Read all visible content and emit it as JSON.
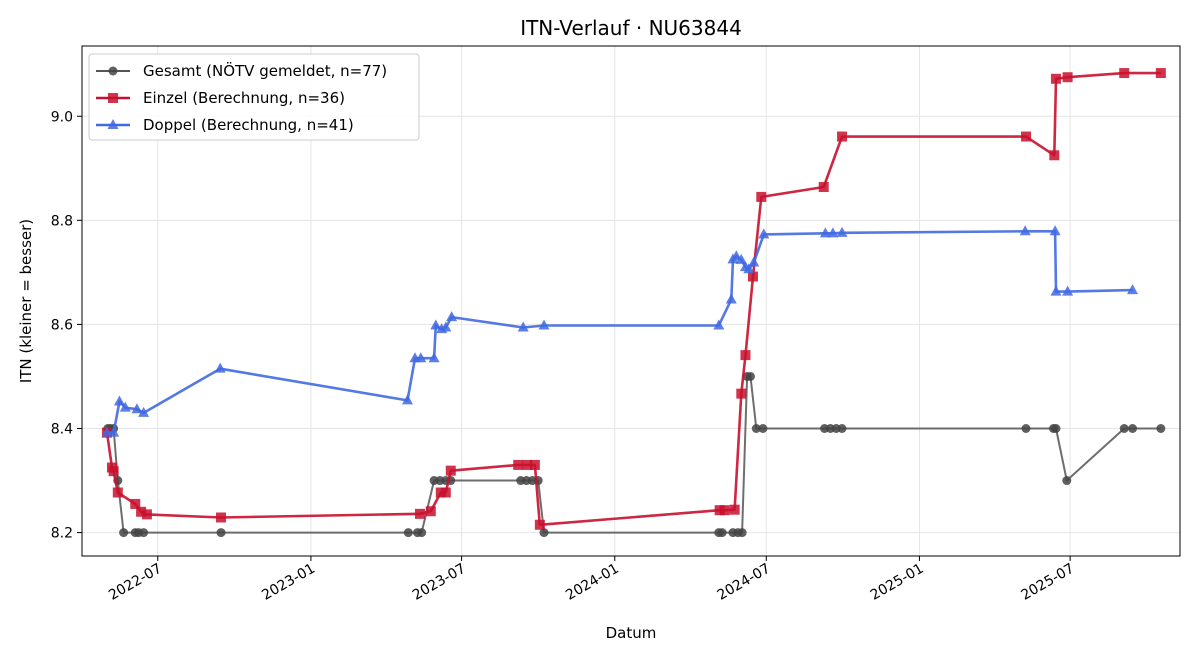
{
  "chart_data": {
    "type": "line",
    "title": "ITN-Verlauf · NU63844",
    "xlabel": "Datum",
    "ylabel": "ITN  (kleiner = besser)",
    "x_axis_type": "date",
    "xlim": [
      "2022-04-01",
      "2025-11-10"
    ],
    "ylim": [
      8.155,
      9.135
    ],
    "x_ticks": [
      "2022-07",
      "2023-01",
      "2023-07",
      "2024-01",
      "2024-07",
      "2025-01",
      "2025-07"
    ],
    "y_ticks": [
      8.2,
      8.4,
      8.6,
      8.8,
      9.0
    ],
    "grid": true,
    "legend_position": "top-left",
    "series": [
      {
        "name": "Gesamt (NÖTV gemeldet, n=77)",
        "color": "#555555",
        "marker": "circle",
        "points": [
          [
            "2022-05-02",
            8.4
          ],
          [
            "2022-05-05",
            8.4
          ],
          [
            "2022-05-09",
            8.4
          ],
          [
            "2022-05-14",
            8.3
          ],
          [
            "2022-05-21",
            8.2
          ],
          [
            "2022-06-04",
            8.2
          ],
          [
            "2022-06-08",
            8.2
          ],
          [
            "2022-06-14",
            8.2
          ],
          [
            "2022-09-15",
            8.2
          ],
          [
            "2023-04-28",
            8.2
          ],
          [
            "2023-05-09",
            8.2
          ],
          [
            "2023-05-14",
            8.2
          ],
          [
            "2023-05-29",
            8.3
          ],
          [
            "2023-06-05",
            8.3
          ],
          [
            "2023-06-12",
            8.3
          ],
          [
            "2023-06-18",
            8.3
          ],
          [
            "2023-09-10",
            8.3
          ],
          [
            "2023-09-17",
            8.3
          ],
          [
            "2023-09-24",
            8.3
          ],
          [
            "2023-10-01",
            8.3
          ],
          [
            "2023-10-08",
            8.2
          ],
          [
            "2024-05-05",
            8.2
          ],
          [
            "2024-05-09",
            8.2
          ],
          [
            "2024-05-22",
            8.2
          ],
          [
            "2024-05-28",
            8.2
          ],
          [
            "2024-06-02",
            8.2
          ],
          [
            "2024-06-08",
            8.5
          ],
          [
            "2024-06-12",
            8.5
          ],
          [
            "2024-06-19",
            8.4
          ],
          [
            "2024-06-27",
            8.4
          ],
          [
            "2024-09-09",
            8.4
          ],
          [
            "2024-09-16",
            8.4
          ],
          [
            "2024-09-23",
            8.4
          ],
          [
            "2024-09-30",
            8.4
          ],
          [
            "2025-05-09",
            8.4
          ],
          [
            "2025-06-11",
            8.4
          ],
          [
            "2025-06-14",
            8.4
          ],
          [
            "2025-06-27",
            8.3
          ],
          [
            "2025-09-04",
            8.4
          ],
          [
            "2025-09-14",
            8.4
          ],
          [
            "2025-10-18",
            8.4
          ]
        ]
      },
      {
        "name": "Einzel (Berechnung, n=36)",
        "color": "#c8102e",
        "marker": "square",
        "points": [
          [
            "2022-05-01",
            8.392
          ],
          [
            "2022-05-07",
            8.325
          ],
          [
            "2022-05-09",
            8.318
          ],
          [
            "2022-05-14",
            8.277
          ],
          [
            "2022-06-04",
            8.255
          ],
          [
            "2022-06-11",
            8.24
          ],
          [
            "2022-06-18",
            8.235
          ],
          [
            "2022-09-15",
            8.229
          ],
          [
            "2023-05-12",
            8.236
          ],
          [
            "2023-05-25",
            8.241
          ],
          [
            "2023-06-06",
            8.277
          ],
          [
            "2023-06-12",
            8.277
          ],
          [
            "2023-06-18",
            8.319
          ],
          [
            "2023-09-07",
            8.33
          ],
          [
            "2023-09-18",
            8.33
          ],
          [
            "2023-09-27",
            8.33
          ],
          [
            "2023-10-03",
            8.215
          ],
          [
            "2024-05-06",
            8.243
          ],
          [
            "2024-05-12",
            8.243
          ],
          [
            "2024-05-24",
            8.244
          ],
          [
            "2024-06-01",
            8.467
          ],
          [
            "2024-06-06",
            8.541
          ],
          [
            "2024-06-15",
            8.692
          ],
          [
            "2024-06-25",
            8.845
          ],
          [
            "2024-09-08",
            8.864
          ],
          [
            "2024-09-30",
            8.961
          ],
          [
            "2025-05-09",
            8.961
          ],
          [
            "2025-06-12",
            8.925
          ],
          [
            "2025-06-14",
            9.072
          ],
          [
            "2025-06-28",
            9.075
          ],
          [
            "2025-09-04",
            9.083
          ],
          [
            "2025-10-18",
            9.083
          ]
        ]
      },
      {
        "name": "Doppel (Berechnung, n=41)",
        "color": "#4169e1",
        "marker": "triangle",
        "points": [
          [
            "2022-05-01",
            8.392
          ],
          [
            "2022-05-09",
            8.392
          ],
          [
            "2022-05-16",
            8.452
          ],
          [
            "2022-05-23",
            8.44
          ],
          [
            "2022-06-06",
            8.437
          ],
          [
            "2022-06-14",
            8.43
          ],
          [
            "2022-09-14",
            8.515
          ],
          [
            "2023-04-27",
            8.454
          ],
          [
            "2023-05-06",
            8.535
          ],
          [
            "2023-05-13",
            8.535
          ],
          [
            "2023-05-29",
            8.535
          ],
          [
            "2023-05-31",
            8.598
          ],
          [
            "2023-06-07",
            8.591
          ],
          [
            "2023-06-12",
            8.594
          ],
          [
            "2023-06-19",
            8.614
          ],
          [
            "2023-09-13",
            8.594
          ],
          [
            "2023-10-08",
            8.598
          ],
          [
            "2024-05-05",
            8.598
          ],
          [
            "2024-05-20",
            8.648
          ],
          [
            "2024-05-22",
            8.725
          ],
          [
            "2024-05-26",
            8.731
          ],
          [
            "2024-06-01",
            8.724
          ],
          [
            "2024-06-06",
            8.71
          ],
          [
            "2024-06-10",
            8.706
          ],
          [
            "2024-06-16",
            8.719
          ],
          [
            "2024-06-28",
            8.773
          ],
          [
            "2024-09-10",
            8.775
          ],
          [
            "2024-09-19",
            8.775
          ],
          [
            "2024-09-30",
            8.776
          ],
          [
            "2025-05-08",
            8.779
          ],
          [
            "2025-06-13",
            8.779
          ],
          [
            "2025-06-14",
            8.663
          ],
          [
            "2025-06-28",
            8.663
          ],
          [
            "2025-09-14",
            8.666
          ]
        ]
      }
    ]
  }
}
